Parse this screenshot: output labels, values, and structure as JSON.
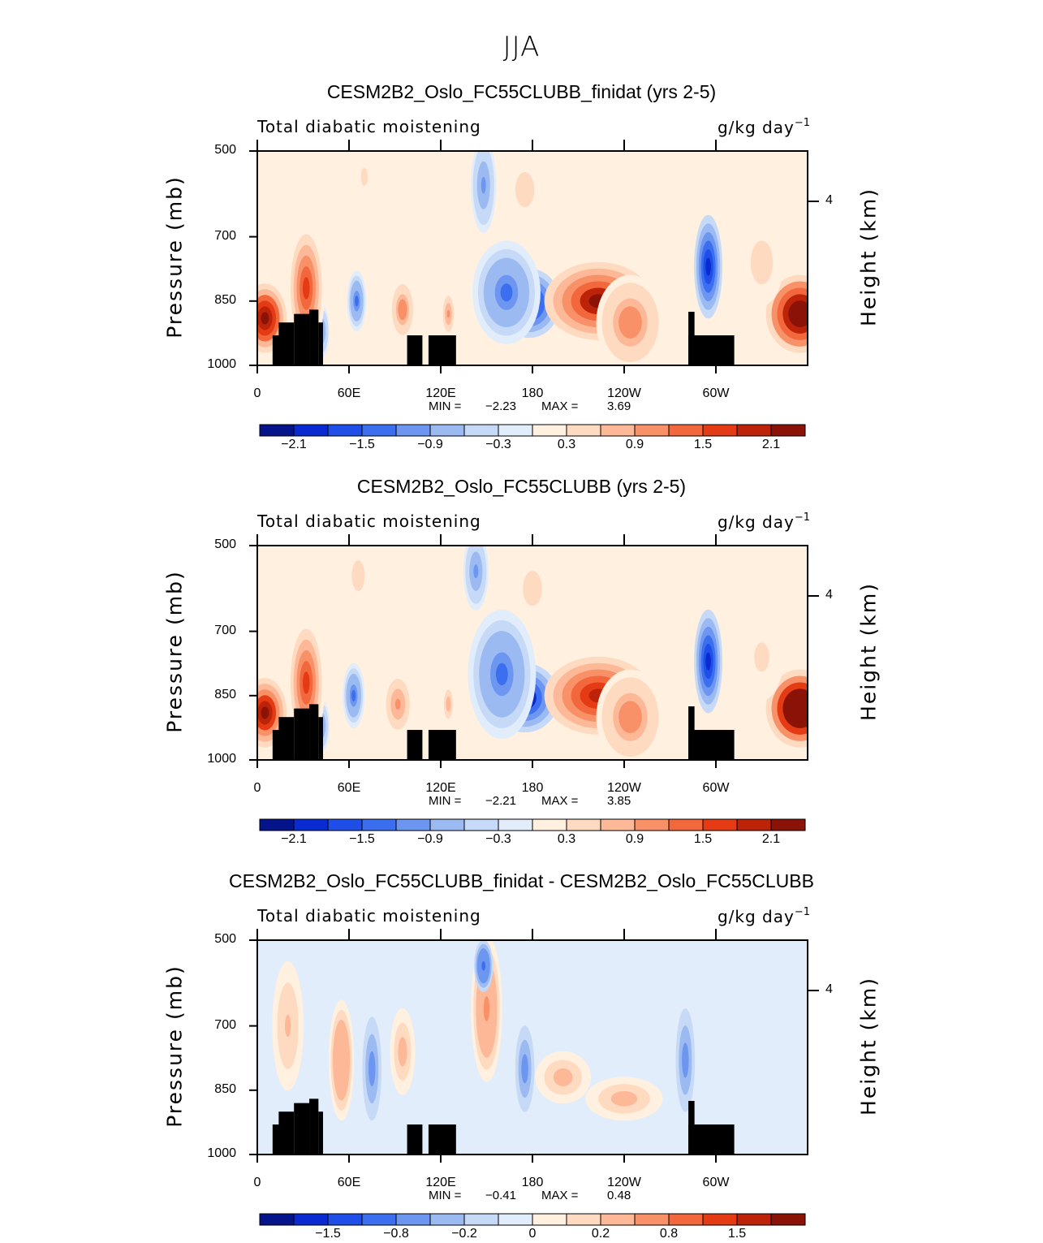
{
  "page_title": "JJA",
  "chart_data": [
    {
      "type": "heatmap",
      "title": "CESM2B2_Oslo_FC55CLUBB_finidat (yrs 2-5)",
      "subtitle_left": "Total diabatic moistening",
      "units_base": "g/kg day",
      "units_exp": "−1",
      "ylabel": "Pressure (mb)",
      "ylabel_right": "Height (km)",
      "yticks": [
        "500",
        "700",
        "850",
        "1000"
      ],
      "ytick_values": [
        500,
        700,
        850,
        1000
      ],
      "ylim": [
        1000,
        500
      ],
      "yticks_right": [
        "4"
      ],
      "xticks": [
        "0",
        "60E",
        "120E",
        "180",
        "120W",
        "60W"
      ],
      "xtick_values": [
        0,
        60,
        120,
        180,
        240,
        300
      ],
      "xlim": [
        0,
        360
      ],
      "min_label": "MIN =",
      "min_value": "−2.23",
      "max_label": "MAX =",
      "max_value": "3.69",
      "colorbar_labels": [
        "−2.1",
        "−1.5",
        "−0.9",
        "−0.3",
        "0.3",
        "0.9",
        "1.5",
        "2.1"
      ],
      "colorbar_colors": [
        "#06148c",
        "#0a2ad2",
        "#1f4fe8",
        "#3b6ff0",
        "#6d96f0",
        "#9cbaf2",
        "#c6d9f7",
        "#e2edfb",
        "#fff0e0",
        "#fddac0",
        "#fcb897",
        "#f89068",
        "#f3673c",
        "#e43b14",
        "#bc2308",
        "#8a1206"
      ],
      "blobs": [
        {
          "lon": 178,
          "p": 855,
          "rlon": 20,
          "rp": 80,
          "v": -2.2
        },
        {
          "lon": 163,
          "p": 830,
          "rlon": 22,
          "rp": 120,
          "v": -1.2
        },
        {
          "lon": 148,
          "p": 580,
          "rlon": 8,
          "rp": 110,
          "v": -1.0
        },
        {
          "lon": 295,
          "p": 770,
          "rlon": 9,
          "rp": 120,
          "v": -1.9
        },
        {
          "lon": 65,
          "p": 850,
          "rlon": 6,
          "rp": 70,
          "v": -1.2
        },
        {
          "lon": 42,
          "p": 920,
          "rlon": 5,
          "rp": 60,
          "v": -0.9
        },
        {
          "lon": 223,
          "p": 850,
          "rlon": 35,
          "rp": 90,
          "v": 2.2
        },
        {
          "lon": 244,
          "p": 900,
          "rlon": 22,
          "rp": 110,
          "v": 1.2
        },
        {
          "lon": 355,
          "p": 880,
          "rlon": 22,
          "rp": 90,
          "v": 3.0
        },
        {
          "lon": 5,
          "p": 890,
          "rlon": 14,
          "rp": 80,
          "v": 2.5
        },
        {
          "lon": 32,
          "p": 820,
          "rlon": 12,
          "rp": 150,
          "v": 1.8
        },
        {
          "lon": 95,
          "p": 870,
          "rlon": 8,
          "rp": 70,
          "v": 1.1
        },
        {
          "lon": 125,
          "p": 880,
          "rlon": 4,
          "rp": 50,
          "v": 1.0
        },
        {
          "lon": 175,
          "p": 590,
          "rlon": 12,
          "rp": 80,
          "v": 0.5
        },
        {
          "lon": 70,
          "p": 560,
          "rlon": 6,
          "rp": 60,
          "v": 0.4
        },
        {
          "lon": 330,
          "p": 760,
          "rlon": 14,
          "rp": 100,
          "v": 0.5
        }
      ]
    },
    {
      "type": "heatmap",
      "title": "CESM2B2_Oslo_FC55CLUBB (yrs 2-5)",
      "subtitle_left": "Total diabatic moistening",
      "units_base": "g/kg day",
      "units_exp": "−1",
      "ylabel": "Pressure (mb)",
      "ylabel_right": "Height (km)",
      "yticks": [
        "500",
        "700",
        "850",
        "1000"
      ],
      "ytick_values": [
        500,
        700,
        850,
        1000
      ],
      "ylim": [
        1000,
        500
      ],
      "yticks_right": [
        "4"
      ],
      "xticks": [
        "0",
        "60E",
        "120E",
        "180",
        "120W",
        "60W"
      ],
      "xtick_values": [
        0,
        60,
        120,
        180,
        240,
        300
      ],
      "xlim": [
        0,
        360
      ],
      "min_label": "MIN =",
      "min_value": "−2.21",
      "max_label": "MAX =",
      "max_value": "3.85",
      "colorbar_labels": [
        "−2.1",
        "−1.5",
        "−0.9",
        "−0.3",
        "0.3",
        "0.9",
        "1.5",
        "2.1"
      ],
      "colorbar_colors": [
        "#06148c",
        "#0a2ad2",
        "#1f4fe8",
        "#3b6ff0",
        "#6d96f0",
        "#9cbaf2",
        "#c6d9f7",
        "#e2edfb",
        "#fff0e0",
        "#fddac0",
        "#fcb897",
        "#f89068",
        "#f3673c",
        "#e43b14",
        "#bc2308",
        "#8a1206"
      ],
      "blobs": [
        {
          "lon": 175,
          "p": 855,
          "rlon": 22,
          "rp": 80,
          "v": -2.2
        },
        {
          "lon": 160,
          "p": 800,
          "rlon": 22,
          "rp": 150,
          "v": -1.2
        },
        {
          "lon": 143,
          "p": 560,
          "rlon": 8,
          "rp": 90,
          "v": -0.9
        },
        {
          "lon": 295,
          "p": 770,
          "rlon": 9,
          "rp": 120,
          "v": -1.8
        },
        {
          "lon": 63,
          "p": 850,
          "rlon": 7,
          "rp": 75,
          "v": -1.3
        },
        {
          "lon": 42,
          "p": 920,
          "rlon": 5,
          "rp": 60,
          "v": -0.9
        },
        {
          "lon": 223,
          "p": 850,
          "rlon": 35,
          "rp": 90,
          "v": 2.0
        },
        {
          "lon": 244,
          "p": 900,
          "rlon": 22,
          "rp": 110,
          "v": 1.2
        },
        {
          "lon": 355,
          "p": 880,
          "rlon": 22,
          "rp": 90,
          "v": 3.2
        },
        {
          "lon": 5,
          "p": 890,
          "rlon": 14,
          "rp": 80,
          "v": 2.4
        },
        {
          "lon": 32,
          "p": 820,
          "rlon": 12,
          "rp": 150,
          "v": 1.8
        },
        {
          "lon": 92,
          "p": 870,
          "rlon": 9,
          "rp": 70,
          "v": 1.0
        },
        {
          "lon": 125,
          "p": 870,
          "rlon": 4,
          "rp": 50,
          "v": 0.9
        },
        {
          "lon": 180,
          "p": 600,
          "rlon": 12,
          "rp": 80,
          "v": 0.5
        },
        {
          "lon": 66,
          "p": 570,
          "rlon": 8,
          "rp": 70,
          "v": 0.5
        },
        {
          "lon": 330,
          "p": 760,
          "rlon": 14,
          "rp": 100,
          "v": 0.4
        }
      ]
    },
    {
      "type": "heatmap",
      "title": "CESM2B2_Oslo_FC55CLUBB_finidat - CESM2B2_Oslo_FC55CLUBB",
      "subtitle_left": "Total diabatic moistening",
      "units_base": "g/kg day",
      "units_exp": "−1",
      "ylabel": "Pressure (mb)",
      "ylabel_right": "Height (km)",
      "yticks": [
        "500",
        "700",
        "850",
        "1000"
      ],
      "ytick_values": [
        500,
        700,
        850,
        1000
      ],
      "ylim": [
        1000,
        500
      ],
      "yticks_right": [
        "4"
      ],
      "xticks": [
        "0",
        "60E",
        "120E",
        "180",
        "120W",
        "60W"
      ],
      "xtick_values": [
        0,
        60,
        120,
        180,
        240,
        300
      ],
      "xlim": [
        0,
        360
      ],
      "min_label": "MIN =",
      "min_value": "−0.41",
      "max_label": "MAX =",
      "max_value": "0.48",
      "colorbar_labels": [
        "−1.5",
        "−0.8",
        "−0.2",
        "0",
        "0.2",
        "0.8",
        "1.5"
      ],
      "colorbar_colors": [
        "#06148c",
        "#0a2ad2",
        "#1f4fe8",
        "#3b6ff0",
        "#6d96f0",
        "#9cbaf2",
        "#c6d9f7",
        "#e2edfb",
        "#fff0e0",
        "#fddac0",
        "#fcb897",
        "#f89068",
        "#f3673c",
        "#e43b14",
        "#bc2308",
        "#8a1206"
      ],
      "blobs": [
        {
          "lon": 150,
          "p": 660,
          "rlon": 10,
          "rp": 170,
          "v": 0.6
        },
        {
          "lon": 148,
          "p": 560,
          "rlon": 6,
          "rp": 60,
          "v": -0.5
        },
        {
          "lon": 55,
          "p": 780,
          "rlon": 8,
          "rp": 140,
          "v": 0.4
        },
        {
          "lon": 95,
          "p": 760,
          "rlon": 8,
          "rp": 100,
          "v": 0.3
        },
        {
          "lon": 200,
          "p": 820,
          "rlon": 18,
          "rp": 60,
          "v": 0.3
        },
        {
          "lon": 240,
          "p": 870,
          "rlon": 25,
          "rp": 50,
          "v": 0.25
        },
        {
          "lon": 175,
          "p": 800,
          "rlon": 6,
          "rp": 100,
          "v": -0.3
        },
        {
          "lon": 280,
          "p": 780,
          "rlon": 6,
          "rp": 120,
          "v": -0.25
        },
        {
          "lon": 75,
          "p": 800,
          "rlon": 6,
          "rp": 120,
          "v": -0.25
        },
        {
          "lon": 20,
          "p": 700,
          "rlon": 10,
          "rp": 150,
          "v": 0.2
        }
      ]
    }
  ]
}
